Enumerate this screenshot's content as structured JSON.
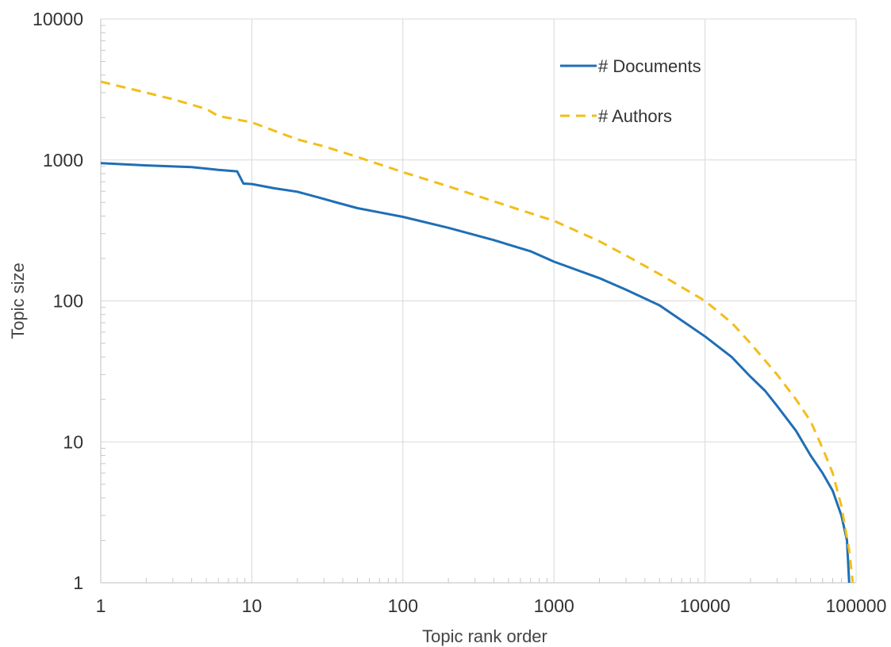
{
  "chart_data": {
    "type": "line",
    "title": "",
    "xlabel": "Topic rank order",
    "ylabel": "Topic size",
    "x_scale": "log",
    "y_scale": "log",
    "xlim": [
      1,
      100000
    ],
    "ylim": [
      1,
      10000
    ],
    "x_ticks": [
      "1",
      "10",
      "100",
      "1000",
      "10000",
      "100000"
    ],
    "y_ticks": [
      "1",
      "10",
      "100",
      "1000",
      "10000"
    ],
    "grid": true,
    "legend_position": "top-right",
    "series": [
      {
        "name": "# Documents",
        "style": "solid",
        "color": "#1f6fb5",
        "points": [
          [
            1,
            950
          ],
          [
            2,
            915
          ],
          [
            4,
            890
          ],
          [
            6,
            850
          ],
          [
            8,
            830
          ],
          [
            8.8,
            680
          ],
          [
            10,
            675
          ],
          [
            14,
            630
          ],
          [
            20,
            595
          ],
          [
            28,
            540
          ],
          [
            35,
            505
          ],
          [
            50,
            455
          ],
          [
            70,
            425
          ],
          [
            100,
            395
          ],
          [
            200,
            330
          ],
          [
            400,
            270
          ],
          [
            700,
            225
          ],
          [
            1000,
            190
          ],
          [
            2000,
            145
          ],
          [
            3000,
            120
          ],
          [
            5000,
            93
          ],
          [
            8000,
            66
          ],
          [
            10000,
            56
          ],
          [
            15000,
            40
          ],
          [
            20000,
            29
          ],
          [
            25000,
            23
          ],
          [
            30000,
            18
          ],
          [
            40000,
            12
          ],
          [
            50000,
            8
          ],
          [
            60000,
            6
          ],
          [
            70000,
            4.5
          ],
          [
            80000,
            3
          ],
          [
            87000,
            2
          ],
          [
            90000,
            1
          ]
        ]
      },
      {
        "name": "# Authors",
        "style": "dashed",
        "color": "#f2be1a",
        "points": [
          [
            1,
            3600
          ],
          [
            2,
            3000
          ],
          [
            3,
            2700
          ],
          [
            5,
            2300
          ],
          [
            6,
            2050
          ],
          [
            10,
            1850
          ],
          [
            20,
            1400
          ],
          [
            30,
            1250
          ],
          [
            50,
            1050
          ],
          [
            100,
            820
          ],
          [
            200,
            650
          ],
          [
            500,
            470
          ],
          [
            1000,
            370
          ],
          [
            2000,
            265
          ],
          [
            3000,
            210
          ],
          [
            5000,
            155
          ],
          [
            10000,
            100
          ],
          [
            15000,
            70
          ],
          [
            20000,
            50
          ],
          [
            30000,
            30
          ],
          [
            40000,
            20
          ],
          [
            50000,
            14
          ],
          [
            60000,
            9
          ],
          [
            70000,
            6
          ],
          [
            80000,
            3.5
          ],
          [
            90000,
            1.7
          ],
          [
            95000,
            1
          ]
        ]
      }
    ]
  }
}
